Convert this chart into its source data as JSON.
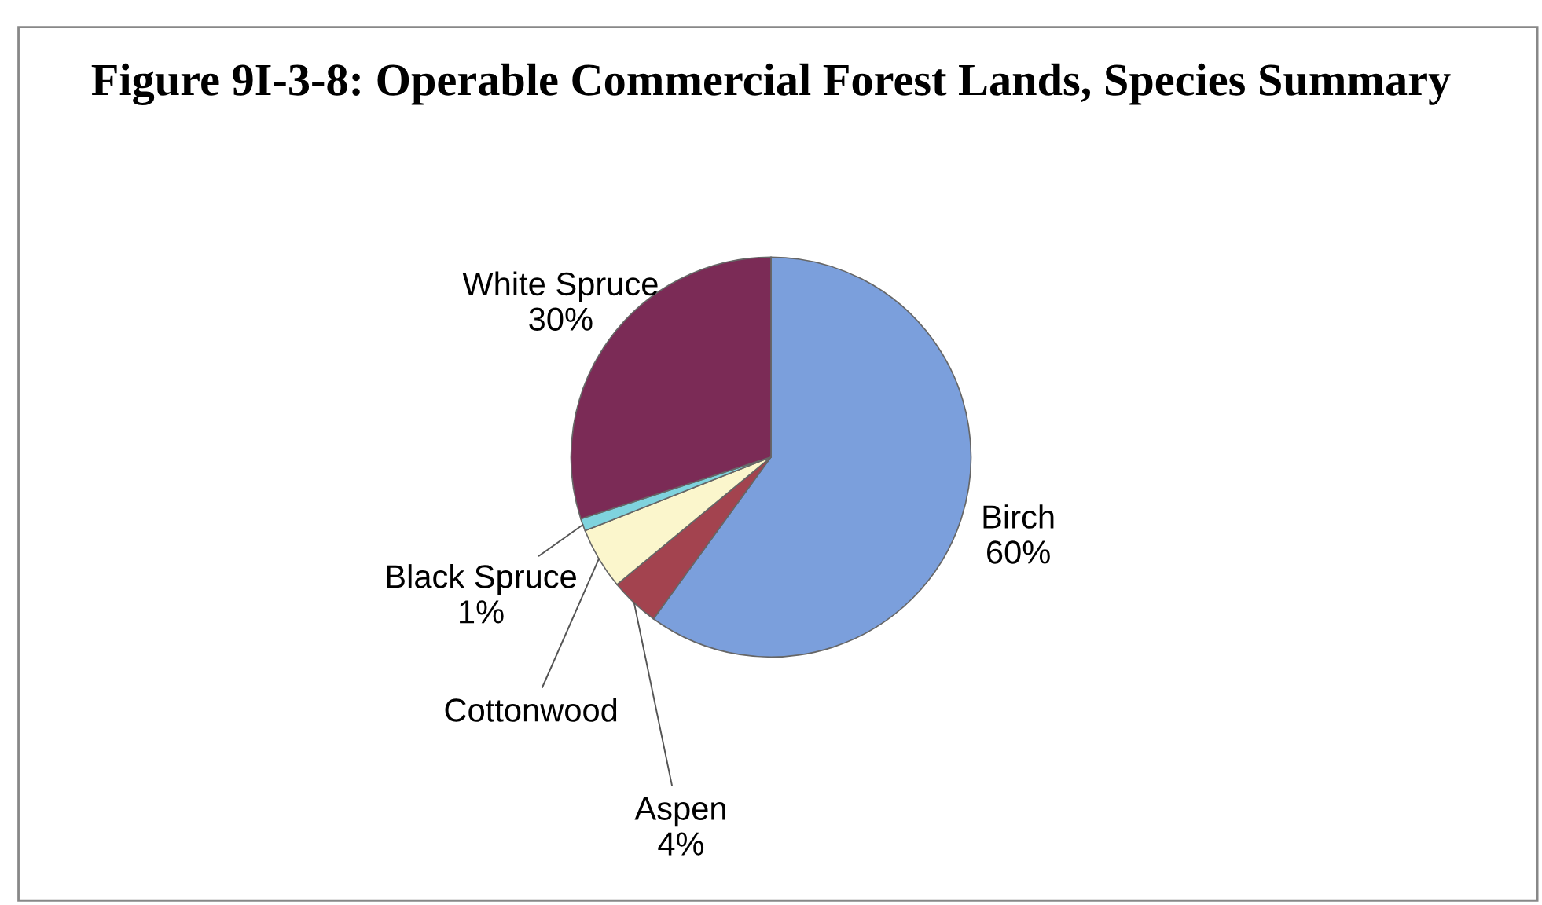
{
  "chart_data": {
    "type": "pie",
    "title": "Figure 9I-3-8: Operable Commercial Forest Lands, Species Summary",
    "categories": [
      "Birch",
      "Aspen",
      "Cottonwood",
      "Black Spruce",
      "White Spruce"
    ],
    "values": [
      60,
      4,
      5,
      1,
      30
    ],
    "value_labels": [
      "60%",
      "4%",
      null,
      "1%",
      "30%"
    ],
    "colors": [
      "#7b9fdc",
      "#a3434f",
      "#fbf6cc",
      "#7fd3de",
      "#7b2b56"
    ]
  }
}
